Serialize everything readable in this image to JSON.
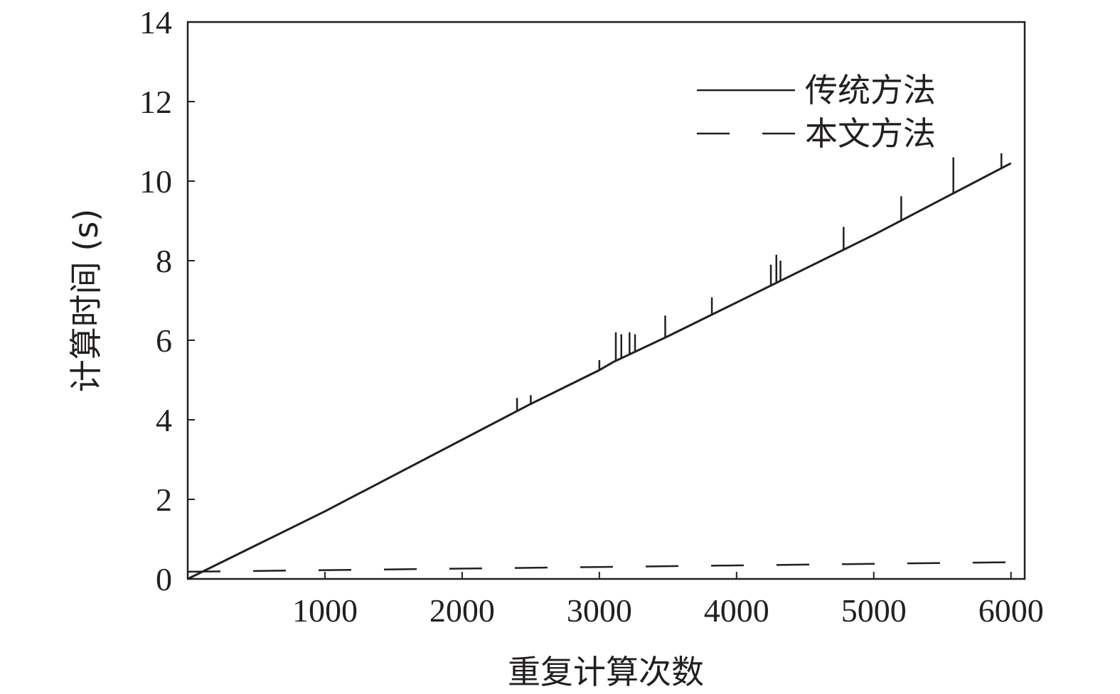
{
  "chart_data": {
    "type": "line",
    "xlabel": "重复计算次数",
    "ylabel": "计算时间 (s)",
    "xlim": [
      0,
      6100
    ],
    "ylim": [
      0,
      14
    ],
    "x_ticks": [
      "1000",
      "2000",
      "3000",
      "4000",
      "5000",
      "6000"
    ],
    "y_ticks": [
      "0",
      "2",
      "4",
      "6",
      "8",
      "10",
      "12",
      "14"
    ],
    "x_tick_values": [
      1000,
      2000,
      3000,
      4000,
      5000,
      6000
    ],
    "y_tick_values": [
      0,
      2,
      4,
      6,
      8,
      10,
      12,
      14
    ],
    "grid": false,
    "legend_position": "top-right",
    "series": [
      {
        "name": "传统方法",
        "style": "solid",
        "color": "#231f20",
        "x": [
          0,
          500,
          1000,
          1500,
          2000,
          2500,
          3000,
          3100,
          3500,
          4000,
          4500,
          5000,
          5500,
          6000
        ],
        "y": [
          0,
          0.85,
          1.7,
          2.6,
          3.5,
          4.4,
          5.25,
          5.45,
          6.1,
          6.95,
          7.8,
          8.65,
          9.55,
          10.45
        ],
        "spikes": [
          {
            "x": 2400,
            "y": 4.55
          },
          {
            "x": 2500,
            "y": 4.62
          },
          {
            "x": 3000,
            "y": 5.5
          },
          {
            "x": 3120,
            "y": 6.2
          },
          {
            "x": 3160,
            "y": 6.15
          },
          {
            "x": 3220,
            "y": 6.2
          },
          {
            "x": 3260,
            "y": 6.15
          },
          {
            "x": 3480,
            "y": 6.62
          },
          {
            "x": 3820,
            "y": 7.08
          },
          {
            "x": 4250,
            "y": 7.9
          },
          {
            "x": 4290,
            "y": 8.15
          },
          {
            "x": 4320,
            "y": 8.0
          },
          {
            "x": 4780,
            "y": 8.85
          },
          {
            "x": 5200,
            "y": 9.62
          },
          {
            "x": 5580,
            "y": 10.6
          },
          {
            "x": 5930,
            "y": 10.7
          }
        ]
      },
      {
        "name": "本文方法",
        "style": "dashed",
        "color": "#231f20",
        "x": [
          0,
          6000
        ],
        "y": [
          0.18,
          0.42
        ]
      }
    ]
  },
  "colors": {
    "ink": "#231f20",
    "background": "#ffffff"
  }
}
